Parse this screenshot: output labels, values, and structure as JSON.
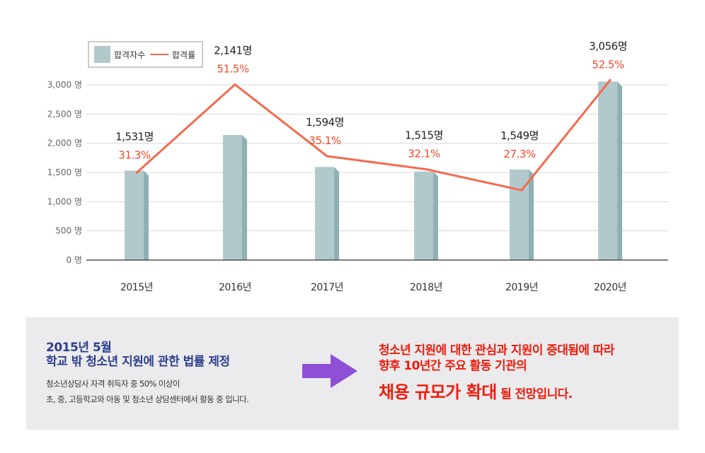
{
  "legend": {
    "bar_label": "합격자수",
    "line_label": "합격률"
  },
  "colors": {
    "bar_front": "#b2c9cc",
    "bar_side": "#8fb0b3",
    "bar_top": "#c8d9db",
    "line": "#f46a4e",
    "rate_text": "#f04a2a",
    "panel_bg": "#ebebed",
    "title_blue": "#2f3f8e",
    "outcome_red": "#ee1c0c",
    "arrow": "#8f4fd6"
  },
  "chart_data": {
    "type": "bar",
    "categories": [
      "2015년",
      "2016년",
      "2017년",
      "2018년",
      "2019년",
      "2020년"
    ],
    "series": [
      {
        "name": "합격자수",
        "type": "bar",
        "values": [
          1531,
          2141,
          1594,
          1515,
          1549,
          3056
        ]
      },
      {
        "name": "합격률",
        "type": "line",
        "values": [
          31.3,
          51.5,
          35.1,
          32.1,
          27.3,
          52.5
        ]
      }
    ],
    "value_labels": [
      "1,531명",
      "2,141명",
      "1,594명",
      "1,515명",
      "1,549명",
      "3,056명"
    ],
    "rate_labels": [
      "31.3%",
      "51.5%",
      "35.1%",
      "32.1%",
      "27.3%",
      "52.5%"
    ],
    "y_ticks": [
      "0 명",
      "500 명",
      "1,000 명",
      "1,500 명",
      "2,000 명",
      "2,500 명",
      "3,000 명"
    ],
    "y_tick_values": [
      0,
      500,
      1000,
      1500,
      2000,
      2500,
      3000
    ],
    "ylim": [
      0,
      3000
    ],
    "rate_ylim": [
      0,
      60
    ],
    "grid": true,
    "legend_position": "top-left"
  },
  "info": {
    "date": "2015년 5월",
    "title": "학교 밖 청소년 지원에 관한 법률 제정",
    "desc1": "청소년상담사 자격 취득자 중 50% 이상이",
    "desc2": "초, 중, 고등학교와 아동 및 청소년 상담센터에서 활동 중 입니다.",
    "outcome_line1": "청소년 지원에 대한 관심과 지원이 증대됨에 따라",
    "outcome_line2": "향후 10년간 주요 활동 기관의",
    "outcome_emphasis": "채용 규모가 확대",
    "outcome_rest": " 될 전망입니다."
  }
}
